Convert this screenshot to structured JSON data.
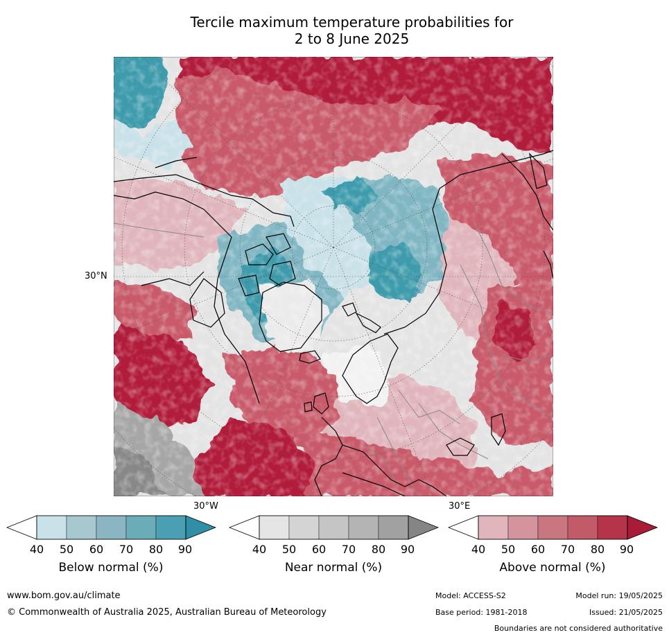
{
  "title": {
    "line1": "Tercile maximum temperature probabilities for",
    "line2": "2 to 8 June 2025"
  },
  "map": {
    "projection": "north polar stereographic",
    "lat_label": "30°N",
    "lon_labels": {
      "left": "30°W",
      "right": "30°E"
    },
    "colors": {
      "ocean_neutral": "#e4e4e4",
      "above_dark": "#b21f3b",
      "above_mid": "#c85a6a",
      "above_light": "#e0b6bc",
      "below_dark": "#3e9bac",
      "below_mid": "#7fb6c2",
      "below_light": "#c9e1e8",
      "near_grey": "#a6a6a6",
      "coastline": "#000000",
      "boundaries": "#888888"
    }
  },
  "colorbars": [
    {
      "name": "below",
      "title": "Below normal (%)",
      "ticks": [
        "40",
        "50",
        "60",
        "70",
        "80",
        "90"
      ],
      "colors": [
        "#ffffff",
        "#c9e1e8",
        "#a7c8cf",
        "#8cb5c3",
        "#6cabb8",
        "#4aa0b2",
        "#2e8fa6"
      ]
    },
    {
      "name": "near",
      "title": "Near normal (%)",
      "ticks": [
        "40",
        "50",
        "60",
        "70",
        "80",
        "90"
      ],
      "colors": [
        "#ffffff",
        "#e5e5e5",
        "#d4d4d4",
        "#c5c5c5",
        "#b4b4b4",
        "#a1a1a1",
        "#858585"
      ]
    },
    {
      "name": "above",
      "title": "Above normal (%)",
      "ticks": [
        "40",
        "50",
        "60",
        "70",
        "80",
        "90"
      ],
      "colors": [
        "#ffffff",
        "#e0b6bc",
        "#d4949e",
        "#c87680",
        "#c25a68",
        "#b5344a",
        "#a81c38"
      ]
    }
  ],
  "footer": {
    "website": "www.bom.gov.au/climate",
    "copyright": "© Commonwealth of Australia 2025, Australian Bureau of Meteorology",
    "model": "Model: ACCESS-S2",
    "base_period": "Base period: 1981-2018",
    "model_run": "Model run: 19/05/2025",
    "issued": "Issued: 21/05/2025",
    "disclaimer": "Boundaries are not considered authoritative"
  }
}
